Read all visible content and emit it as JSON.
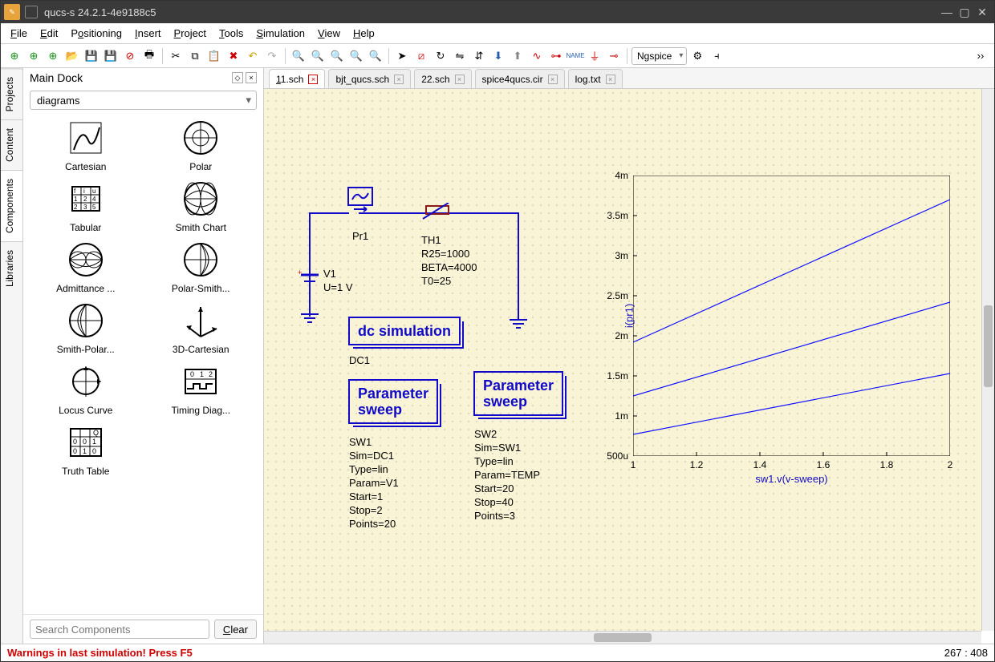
{
  "window": {
    "title": "qucs-s 24.2.1-4e9188c5"
  },
  "menu": [
    "File",
    "Edit",
    "Positioning",
    "Insert",
    "Project",
    "Tools",
    "Simulation",
    "View",
    "Help"
  ],
  "toolbar_engine": "Ngspice",
  "dock": {
    "title": "Main Dock",
    "category": "diagrams",
    "items": [
      "Cartesian",
      "Polar",
      "Tabular",
      "Smith Chart",
      "Admittance ...",
      "Polar-Smith...",
      "Smith-Polar...",
      "3D-Cartesian",
      "Locus Curve",
      "Timing Diag...",
      "Truth Table"
    ],
    "search_placeholder": "Search Components",
    "clear_label": "Clear"
  },
  "sidetabs": [
    "Projects",
    "Content",
    "Components",
    "Libraries"
  ],
  "tabs": [
    {
      "label": "11.sch",
      "active": true,
      "dirty": true
    },
    {
      "label": "bjt_qucs.sch"
    },
    {
      "label": "22.sch"
    },
    {
      "label": "spice4qucs.cir"
    },
    {
      "label": "log.txt"
    }
  ],
  "schematic": {
    "probe": {
      "name": "Pr1"
    },
    "th": {
      "name": "TH1",
      "lines": [
        "R25=1000",
        "BETA=4000",
        "T0=25"
      ]
    },
    "vsrc": {
      "name": "V1",
      "val": "U=1 V"
    },
    "dc": {
      "title": "dc simulation",
      "name": "DC1"
    },
    "sw1": {
      "title": "Parameter\nsweep",
      "name": "SW1",
      "lines": [
        "Sim=DC1",
        "Type=lin",
        "Param=V1",
        "Start=1",
        "Stop=2",
        "Points=20"
      ]
    },
    "sw2": {
      "title": "Parameter\nsweep",
      "name": "SW2",
      "lines": [
        "Sim=SW1",
        "Type=lin",
        "Param=TEMP",
        "Start=20",
        "Stop=40",
        "Points=3"
      ]
    }
  },
  "chart": {
    "type": "line",
    "xlim": [
      1,
      2
    ],
    "ylim": [
      0.0005,
      0.004
    ],
    "xticks": [
      1,
      1.2,
      1.4,
      1.6,
      1.8,
      2
    ],
    "yticks": [
      {
        "v": 0.0005,
        "l": "500u"
      },
      {
        "v": 0.001,
        "l": "1m"
      },
      {
        "v": 0.0015,
        "l": "1.5m"
      },
      {
        "v": 0.002,
        "l": "2m"
      },
      {
        "v": 0.0025,
        "l": "2.5m"
      },
      {
        "v": 0.003,
        "l": "3m"
      },
      {
        "v": 0.0035,
        "l": "3.5m"
      },
      {
        "v": 0.004,
        "l": "4m"
      }
    ],
    "series_color": "#1010ff",
    "line_width": 1.2,
    "frame_color": "#000000",
    "ylabel": "i(pr1)",
    "xlabel": "sw1.v(v-sweep)",
    "series": [
      {
        "y0": 0.00077,
        "y1": 0.00153
      },
      {
        "y0": 0.00125,
        "y1": 0.00242
      },
      {
        "y0": 0.00192,
        "y1": 0.0037
      }
    ]
  },
  "status": {
    "warning": "Warnings in last simulation! Press F5",
    "coords": "267 : 408"
  }
}
